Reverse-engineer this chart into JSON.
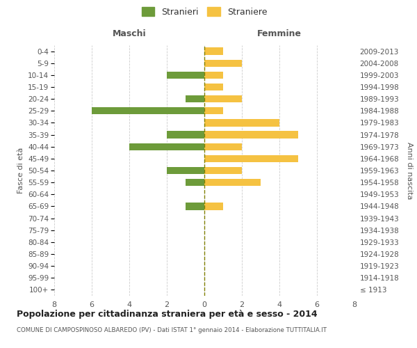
{
  "age_groups": [
    "100+",
    "95-99",
    "90-94",
    "85-89",
    "80-84",
    "75-79",
    "70-74",
    "65-69",
    "60-64",
    "55-59",
    "50-54",
    "45-49",
    "40-44",
    "35-39",
    "30-34",
    "25-29",
    "20-24",
    "15-19",
    "10-14",
    "5-9",
    "0-4"
  ],
  "birth_years": [
    "≤ 1913",
    "1914-1918",
    "1919-1923",
    "1924-1928",
    "1929-1933",
    "1934-1938",
    "1939-1943",
    "1944-1948",
    "1949-1953",
    "1954-1958",
    "1959-1963",
    "1964-1968",
    "1969-1973",
    "1974-1978",
    "1979-1983",
    "1984-1988",
    "1989-1993",
    "1994-1998",
    "1999-2003",
    "2004-2008",
    "2009-2013"
  ],
  "maschi": [
    0,
    0,
    0,
    0,
    0,
    0,
    0,
    1,
    0,
    1,
    2,
    0,
    4,
    2,
    0,
    6,
    1,
    0,
    2,
    0,
    0
  ],
  "femmine": [
    0,
    0,
    0,
    0,
    0,
    0,
    0,
    1,
    0,
    3,
    2,
    5,
    2,
    5,
    4,
    1,
    2,
    1,
    1,
    2,
    1
  ],
  "color_maschi": "#6d9b3a",
  "color_femmine": "#f5c242",
  "title": "Popolazione per cittadinanza straniera per età e sesso - 2014",
  "subtitle": "COMUNE DI CAMPOSPINOSO ALBAREDO (PV) - Dati ISTAT 1° gennaio 2014 - Elaborazione TUTTITALIA.IT",
  "xlabel_left": "Maschi",
  "xlabel_right": "Femmine",
  "ylabel_left": "Fasce di età",
  "ylabel_right": "Anni di nascita",
  "legend_maschi": "Stranieri",
  "legend_femmine": "Straniere",
  "xlim": 8,
  "background_color": "#ffffff",
  "grid_color": "#cccccc"
}
